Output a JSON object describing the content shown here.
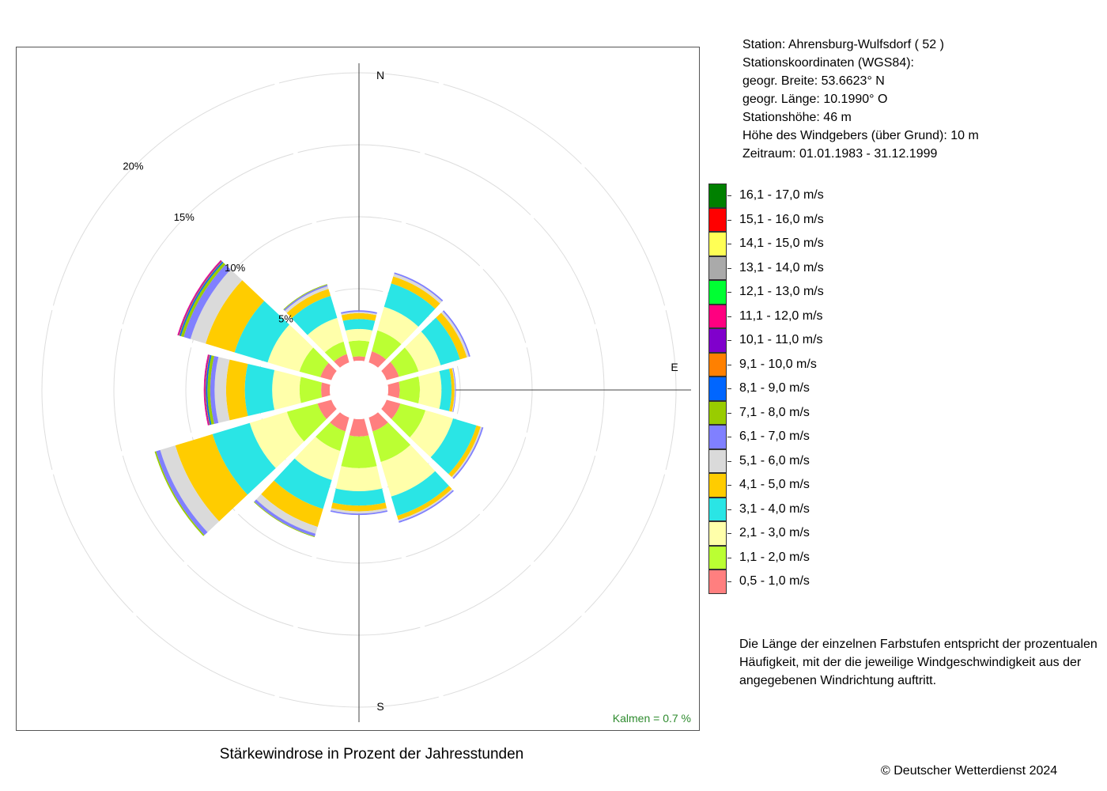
{
  "title": "Stärkewindrose in Prozent der Jahresstunden",
  "station": {
    "lines": [
      "Station:  Ahrensburg-Wulfsdorf  ( 52 )",
      "Stationskoordinaten (WGS84):",
      "geogr. Breite: 53.6623° N",
      "geogr. Länge: 10.1990° O",
      "Stationshöhe: 46 m",
      "Höhe des Windgebers (über Grund): 10 m",
      "Zeitraum: 01.01.1983 - 31.12.1999"
    ]
  },
  "note": {
    "lines": [
      "Die Länge der einzelnen Farbstufen entspricht der prozentualen",
      "Häufigkeit, mit der die jeweilige Windgeschwindigkeit aus der",
      "angegebenen Windrichtung auftritt."
    ]
  },
  "copyright": "© Deutscher Wetterdienst  2024",
  "calm_label": "Kalmen  =  0.7 %",
  "calm_color": "#2e8b2e",
  "compass": {
    "N": "N",
    "E": "E",
    "S": "S"
  },
  "chart_data": {
    "type": "polar-stacked-bar",
    "unit": "%",
    "calm_percent": 0.7,
    "ring_labels": [
      "5%",
      "10%",
      "15%",
      "20%"
    ],
    "ring_values": [
      5,
      10,
      15,
      20
    ],
    "rmax": 20,
    "directions_deg": [
      0,
      30,
      60,
      90,
      120,
      150,
      180,
      210,
      240,
      270,
      300,
      330
    ],
    "classes": [
      {
        "label": "0,5 - 1,0 m/s",
        "color": "#FF7F7F"
      },
      {
        "label": "1,1 - 2,0 m/s",
        "color": "#BBFF33"
      },
      {
        "label": "2,1 - 3,0 m/s",
        "color": "#FFFFAA"
      },
      {
        "label": "3,1 - 4,0 m/s",
        "color": "#2AE5E5"
      },
      {
        "label": "4,1 - 5,0 m/s",
        "color": "#FFCC00"
      },
      {
        "label": "5,1 - 6,0 m/s",
        "color": "#DADADA"
      },
      {
        "label": "6,1 - 7,0 m/s",
        "color": "#8080FF"
      },
      {
        "label": "7,1 - 8,0 m/s",
        "color": "#99CC00"
      },
      {
        "label": "8,1 - 9,0 m/s",
        "color": "#0066FF"
      },
      {
        "label": "9,1 - 10,0 m/s",
        "color": "#FF8000"
      },
      {
        "label": "10,1 - 11,0 m/s",
        "color": "#8000CC"
      },
      {
        "label": "11,1 - 12,0 m/s",
        "color": "#FF0080"
      },
      {
        "label": "12,1 - 13,0 m/s",
        "color": "#00FF33"
      },
      {
        "label": "13,1 - 14,0 m/s",
        "color": "#AAAAAA"
      },
      {
        "label": "14,1 - 15,0 m/s",
        "color": "#FFFF55"
      },
      {
        "label": "15,1 - 16,0 m/s",
        "color": "#FF0000"
      },
      {
        "label": "16,1 - 17,0 m/s",
        "color": "#008000"
      }
    ],
    "series": [
      {
        "dir": 0,
        "values": [
          0.3,
          1.1,
          0.8,
          0.7,
          0.4,
          0.1,
          0.1,
          0,
          0,
          0,
          0,
          0,
          0,
          0,
          0,
          0,
          0
        ]
      },
      {
        "dir": 30,
        "values": [
          0.8,
          1.5,
          1.7,
          1.7,
          0.5,
          0.2,
          0.1,
          0,
          0,
          0,
          0,
          0,
          0,
          0,
          0,
          0,
          0
        ]
      },
      {
        "dir": 60,
        "values": [
          0.9,
          1.4,
          1.6,
          1.4,
          0.5,
          0.15,
          0.1,
          0,
          0,
          0,
          0,
          0,
          0,
          0,
          0,
          0,
          0
        ]
      },
      {
        "dir": 90,
        "values": [
          0.8,
          1.4,
          1.5,
          0.7,
          0.2,
          0.05,
          0.05,
          0,
          0,
          0,
          0,
          0,
          0,
          0,
          0,
          0,
          0
        ]
      },
      {
        "dir": 120,
        "values": [
          1.0,
          1.8,
          2.0,
          1.7,
          0.3,
          0.1,
          0.1,
          0,
          0,
          0,
          0,
          0,
          0,
          0,
          0,
          0,
          0
        ]
      },
      {
        "dir": 150,
        "values": [
          1.0,
          2.2,
          2.5,
          1.4,
          0.3,
          0.1,
          0.1,
          0,
          0,
          0,
          0,
          0,
          0,
          0,
          0,
          0,
          0
        ]
      },
      {
        "dir": 180,
        "values": [
          1.2,
          2.2,
          1.6,
          1.0,
          0.4,
          0.15,
          0.1,
          0,
          0,
          0,
          0,
          0,
          0,
          0,
          0,
          0,
          0
        ]
      },
      {
        "dir": 210,
        "values": [
          1.0,
          1.4,
          2.1,
          2.1,
          1.3,
          0.5,
          0.2,
          0.05,
          0,
          0,
          0,
          0,
          0,
          0,
          0,
          0,
          0
        ]
      },
      {
        "dir": 240,
        "values": [
          1.0,
          2.2,
          2.7,
          2.7,
          2.7,
          1.1,
          0.3,
          0.1,
          0,
          0,
          0,
          0,
          0,
          0,
          0,
          0,
          0
        ]
      },
      {
        "dir": 270,
        "values": [
          0.6,
          1.5,
          1.9,
          1.9,
          1.3,
          0.8,
          0.3,
          0.2,
          0.1,
          0.05,
          0.05,
          0.05,
          0,
          0,
          0,
          0,
          0
        ]
      },
      {
        "dir": 300,
        "values": [
          0.8,
          1.5,
          2.3,
          2.4,
          2.1,
          1.1,
          0.5,
          0.2,
          0.1,
          0.05,
          0.05,
          0.05,
          0,
          0,
          0,
          0,
          0
        ]
      },
      {
        "dir": 330,
        "values": [
          0.6,
          0.9,
          1.7,
          1.6,
          0.5,
          0.2,
          0.1,
          0.05,
          0,
          0,
          0,
          0,
          0,
          0,
          0,
          0,
          0
        ]
      }
    ]
  }
}
